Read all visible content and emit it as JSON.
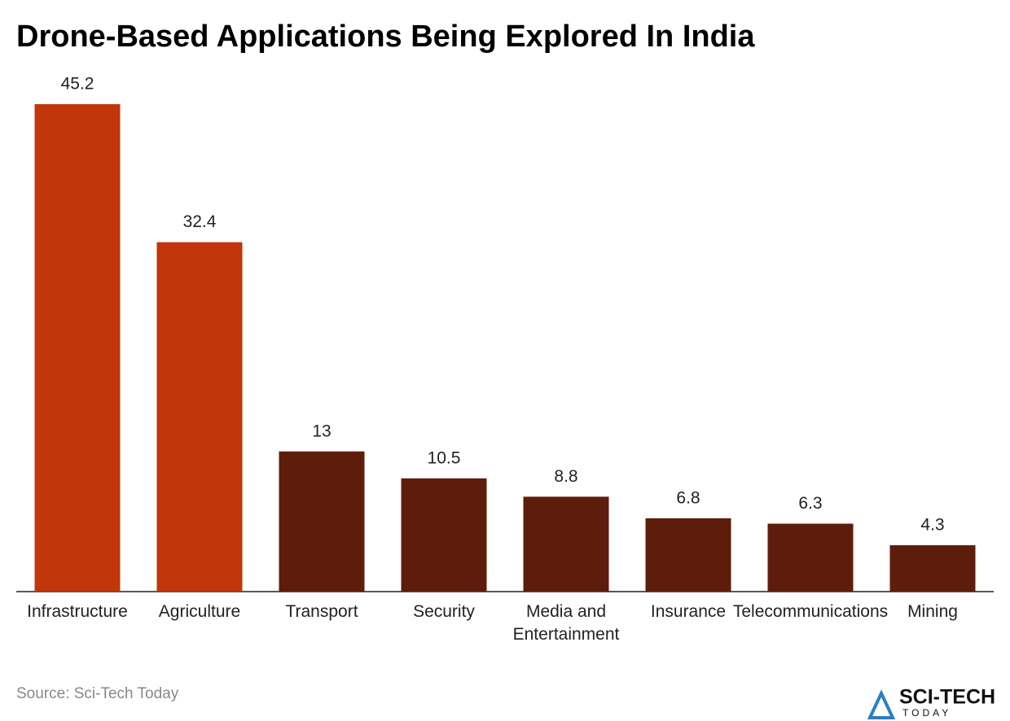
{
  "chart_data": {
    "type": "bar",
    "title": "Drone-Based Applications Being Explored In India",
    "categories": [
      "Infrastructure",
      "Agriculture",
      "Transport",
      "Security",
      "Media and Entertainment",
      "Insurance",
      "Telecommunications",
      "Mining"
    ],
    "values": [
      45.2,
      32.4,
      13,
      10.5,
      8.8,
      6.8,
      6.3,
      4.3
    ],
    "colors": [
      "#c1360b",
      "#c1360b",
      "#5e1d0a",
      "#5e1d0a",
      "#5e1d0a",
      "#5e1d0a",
      "#5e1d0a",
      "#5e1d0a"
    ],
    "ylim": [
      0,
      45.2
    ],
    "source": "Source: Sci-Tech Today"
  },
  "logo": {
    "name": "SCI-TECH",
    "tagline": "TODAY"
  }
}
